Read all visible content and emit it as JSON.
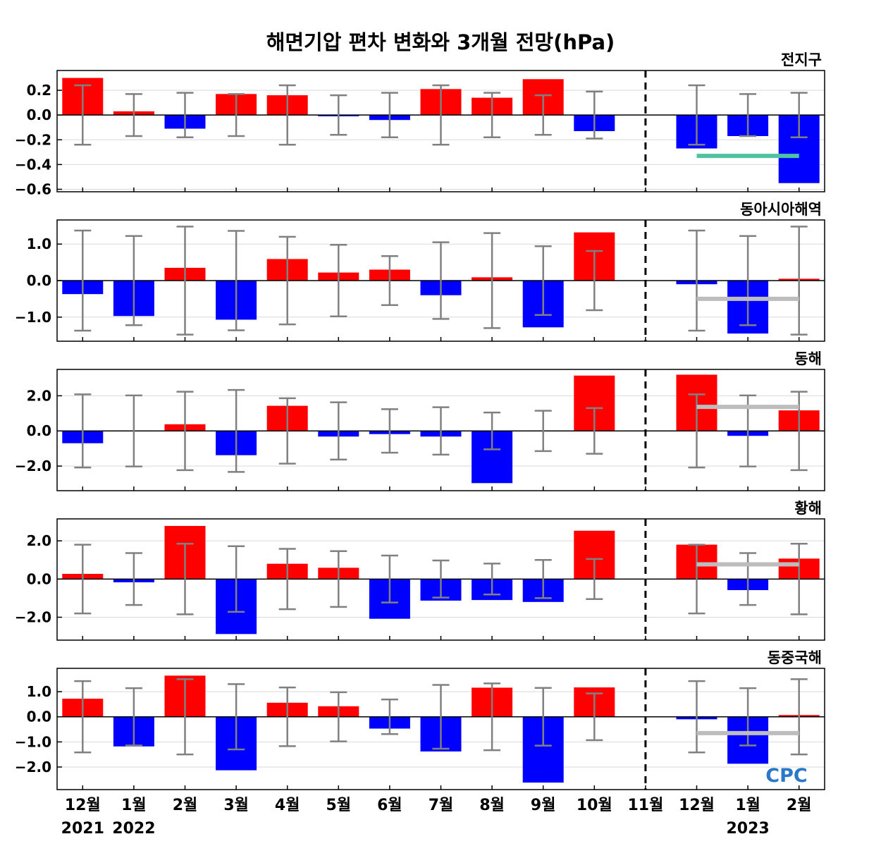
{
  "title": "해면기압 편차 변화와 3개월 전망(hPa)",
  "logo_text": "CPC",
  "colors": {
    "positive": "#ff0000",
    "negative": "#0000ff",
    "errorbar": "#808080",
    "outlook_global": "#4fc3a1",
    "outlook_regional": "#bdbdbd",
    "grid": "#d9d9d9"
  },
  "x_labels": [
    "12월",
    "1월",
    "2월",
    "3월",
    "4월",
    "5월",
    "6월",
    "7월",
    "8월",
    "9월",
    "10월",
    "11월",
    "12월",
    "1월",
    "2월"
  ],
  "year_labels": [
    {
      "text": "2021",
      "index": 0
    },
    {
      "text": "2022",
      "index": 1
    },
    {
      "text": "2023",
      "index": 13
    }
  ],
  "chart_data": [
    {
      "type": "bar",
      "region": "전지구",
      "categories": [
        "12월",
        "1월",
        "2월",
        "3월",
        "4월",
        "5월",
        "6월",
        "7월",
        "8월",
        "9월",
        "10월",
        "11월",
        "12월",
        "1월",
        "2월"
      ],
      "values": [
        0.3,
        0.03,
        -0.11,
        0.17,
        0.16,
        -0.01,
        -0.04,
        0.21,
        0.14,
        0.29,
        -0.13,
        0.0,
        -0.27,
        -0.17,
        -0.55
      ],
      "errors": [
        0.24,
        0.17,
        0.18,
        0.17,
        0.24,
        0.16,
        0.18,
        0.24,
        0.18,
        0.16,
        0.19,
        null,
        0.24,
        0.17,
        0.18
      ],
      "outlook_value": -0.33,
      "outlook_range": [
        12,
        14
      ],
      "ylim": [
        -0.62,
        0.36
      ],
      "yticks": [
        0.2,
        0.0,
        -0.2,
        -0.4,
        -0.6
      ],
      "ytick_labels": [
        "0.2",
        "0.0",
        "−0.2",
        "−0.4",
        "−0.6"
      ]
    },
    {
      "type": "bar",
      "region": "동아시아해역",
      "categories": [
        "12월",
        "1월",
        "2월",
        "3월",
        "4월",
        "5월",
        "6월",
        "7월",
        "8월",
        "9월",
        "10월",
        "11월",
        "12월",
        "1월",
        "2월"
      ],
      "values": [
        -0.37,
        -0.97,
        0.35,
        -1.07,
        0.59,
        0.22,
        0.3,
        -0.4,
        0.09,
        -1.28,
        1.32,
        0.0,
        -0.1,
        -1.45,
        0.05
      ],
      "errors": [
        1.37,
        1.22,
        1.48,
        1.36,
        1.2,
        0.98,
        0.67,
        1.05,
        1.3,
        0.94,
        0.81,
        null,
        1.37,
        1.22,
        1.48
      ],
      "outlook_value": -0.5,
      "outlook_range": [
        12,
        14
      ],
      "ylim": [
        -1.66,
        1.66
      ],
      "yticks": [
        1.0,
        0.0,
        -1.0
      ],
      "ytick_labels": [
        "1.0",
        "0.0",
        "−1.0"
      ]
    },
    {
      "type": "bar",
      "region": "동해",
      "categories": [
        "12월",
        "1월",
        "2월",
        "3월",
        "4월",
        "5월",
        "6월",
        "7월",
        "8월",
        "9월",
        "10월",
        "11월",
        "12월",
        "1월",
        "2월"
      ],
      "values": [
        -0.7,
        -0.05,
        0.38,
        -1.38,
        1.43,
        -0.32,
        -0.18,
        -0.32,
        -2.97,
        -0.05,
        3.15,
        0.0,
        3.2,
        -0.28,
        1.17
      ],
      "errors": [
        2.08,
        2.02,
        2.23,
        2.33,
        1.86,
        1.63,
        1.24,
        1.35,
        1.05,
        1.15,
        1.3,
        null,
        2.08,
        2.02,
        2.23
      ],
      "outlook_value": 1.37,
      "outlook_range": [
        12,
        14
      ],
      "ylim": [
        -3.4,
        3.5
      ],
      "yticks": [
        2.0,
        0.0,
        -2.0
      ],
      "ytick_labels": [
        "2.0",
        "0.0",
        "−2.0"
      ]
    },
    {
      "type": "bar",
      "region": "황해",
      "categories": [
        "12월",
        "1월",
        "2월",
        "3월",
        "4월",
        "5월",
        "6월",
        "7월",
        "8월",
        "9월",
        "10월",
        "11월",
        "12월",
        "1월",
        "2월"
      ],
      "values": [
        0.27,
        -0.17,
        2.78,
        -2.88,
        0.8,
        0.59,
        -2.08,
        -1.13,
        -1.1,
        -1.2,
        2.53,
        0.0,
        1.8,
        -0.58,
        1.07
      ],
      "errors": [
        1.8,
        1.36,
        1.85,
        1.72,
        1.58,
        1.46,
        1.23,
        0.97,
        0.81,
        1.0,
        1.05,
        null,
        1.8,
        1.36,
        1.85
      ],
      "outlook_value": 0.77,
      "outlook_range": [
        12,
        14
      ],
      "ylim": [
        -3.2,
        3.15
      ],
      "yticks": [
        2.0,
        0.0,
        -2.0
      ],
      "ytick_labels": [
        "2.0",
        "0.0",
        "−2.0"
      ]
    },
    {
      "type": "bar",
      "region": "동중국해",
      "categories": [
        "12월",
        "1월",
        "2월",
        "3월",
        "4월",
        "5월",
        "6월",
        "7월",
        "8월",
        "9월",
        "10월",
        "11월",
        "12월",
        "1월",
        "2월"
      ],
      "values": [
        0.72,
        -1.18,
        1.64,
        -2.13,
        0.56,
        0.42,
        -0.47,
        -1.38,
        1.16,
        -2.62,
        1.17,
        0.0,
        -0.1,
        -1.87,
        0.07
      ],
      "errors": [
        1.42,
        1.14,
        1.5,
        1.3,
        1.17,
        0.98,
        0.69,
        1.27,
        1.33,
        1.15,
        0.93,
        null,
        1.42,
        1.14,
        1.5
      ],
      "outlook_value": -0.65,
      "outlook_range": [
        12,
        14
      ],
      "ylim": [
        -2.9,
        1.93
      ],
      "yticks": [
        1.0,
        0.0,
        -1.0,
        -2.0
      ],
      "ytick_labels": [
        "1.0",
        "0.0",
        "−1.0",
        "−2.0"
      ]
    }
  ]
}
